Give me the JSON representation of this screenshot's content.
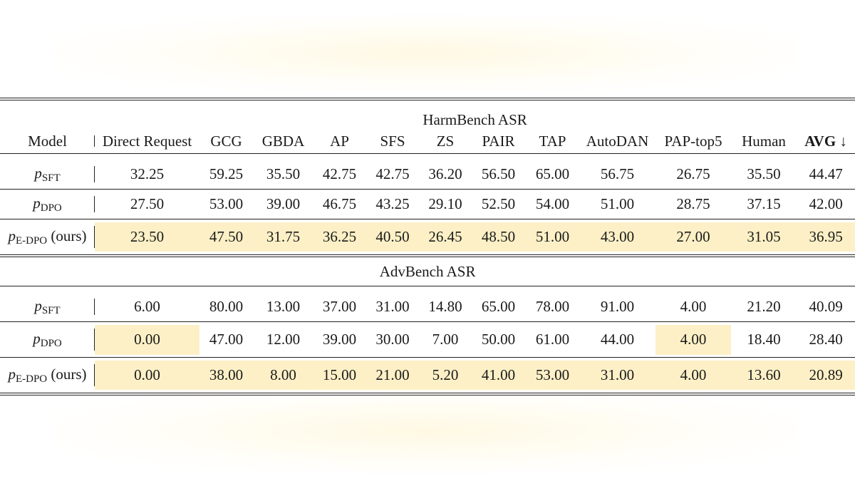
{
  "header": {
    "model": "Model",
    "columns": [
      "Direct Request",
      "GCG",
      "GBDA",
      "AP",
      "SFS",
      "ZS",
      "PAIR",
      "TAP",
      "AutoDAN",
      "PAP-top5",
      "Human",
      "AVG ↓"
    ]
  },
  "sections": [
    {
      "title": "HarmBench ASR",
      "rows": [
        {
          "model_main": "p",
          "model_sub": "SFT",
          "model_suffix": "",
          "values": [
            "32.25",
            "59.25",
            "35.50",
            "42.75",
            "42.75",
            "36.20",
            "56.50",
            "65.00",
            "56.75",
            "26.75",
            "35.50",
            "44.47"
          ],
          "highlight": [
            false,
            false,
            false,
            false,
            false,
            false,
            false,
            false,
            false,
            false,
            false,
            false
          ]
        },
        {
          "model_main": "p",
          "model_sub": "DPO",
          "model_suffix": "",
          "values": [
            "27.50",
            "53.00",
            "39.00",
            "46.75",
            "43.25",
            "29.10",
            "52.50",
            "54.00",
            "51.00",
            "28.75",
            "37.15",
            "42.00"
          ],
          "highlight": [
            false,
            false,
            false,
            false,
            false,
            false,
            false,
            false,
            false,
            false,
            false,
            false
          ]
        },
        {
          "model_main": "p",
          "model_sub": "E-DPO",
          "model_suffix": " (ours)",
          "values": [
            "23.50",
            "47.50",
            "31.75",
            "36.25",
            "40.50",
            "26.45",
            "48.50",
            "51.00",
            "43.00",
            "27.00",
            "31.05",
            "36.95"
          ],
          "highlight": [
            true,
            true,
            true,
            true,
            true,
            true,
            true,
            true,
            true,
            true,
            true,
            true
          ]
        }
      ]
    },
    {
      "title": "AdvBench ASR",
      "rows": [
        {
          "model_main": "p",
          "model_sub": "SFT",
          "model_suffix": "",
          "values": [
            "6.00",
            "80.00",
            "13.00",
            "37.00",
            "31.00",
            "14.80",
            "65.00",
            "78.00",
            "91.00",
            "4.00",
            "21.20",
            "40.09"
          ],
          "highlight": [
            false,
            false,
            false,
            false,
            false,
            false,
            false,
            false,
            false,
            false,
            false,
            false
          ]
        },
        {
          "model_main": "p",
          "model_sub": "DPO",
          "model_suffix": "",
          "values": [
            "0.00",
            "47.00",
            "12.00",
            "39.00",
            "30.00",
            "7.00",
            "50.00",
            "61.00",
            "44.00",
            "4.00",
            "18.40",
            "28.40"
          ],
          "highlight": [
            true,
            false,
            false,
            false,
            false,
            false,
            false,
            false,
            false,
            true,
            false,
            false
          ]
        },
        {
          "model_main": "p",
          "model_sub": "E-DPO",
          "model_suffix": " (ours)",
          "values": [
            "0.00",
            "38.00",
            "8.00",
            "15.00",
            "21.00",
            "5.20",
            "41.00",
            "53.00",
            "31.00",
            "4.00",
            "13.60",
            "20.89"
          ],
          "highlight": [
            true,
            true,
            true,
            true,
            true,
            true,
            true,
            true,
            true,
            true,
            true,
            true
          ]
        }
      ]
    }
  ],
  "colors": {
    "highlight": "#fdf0c6",
    "rule": "#222222",
    "text": "#1a1a1a"
  }
}
